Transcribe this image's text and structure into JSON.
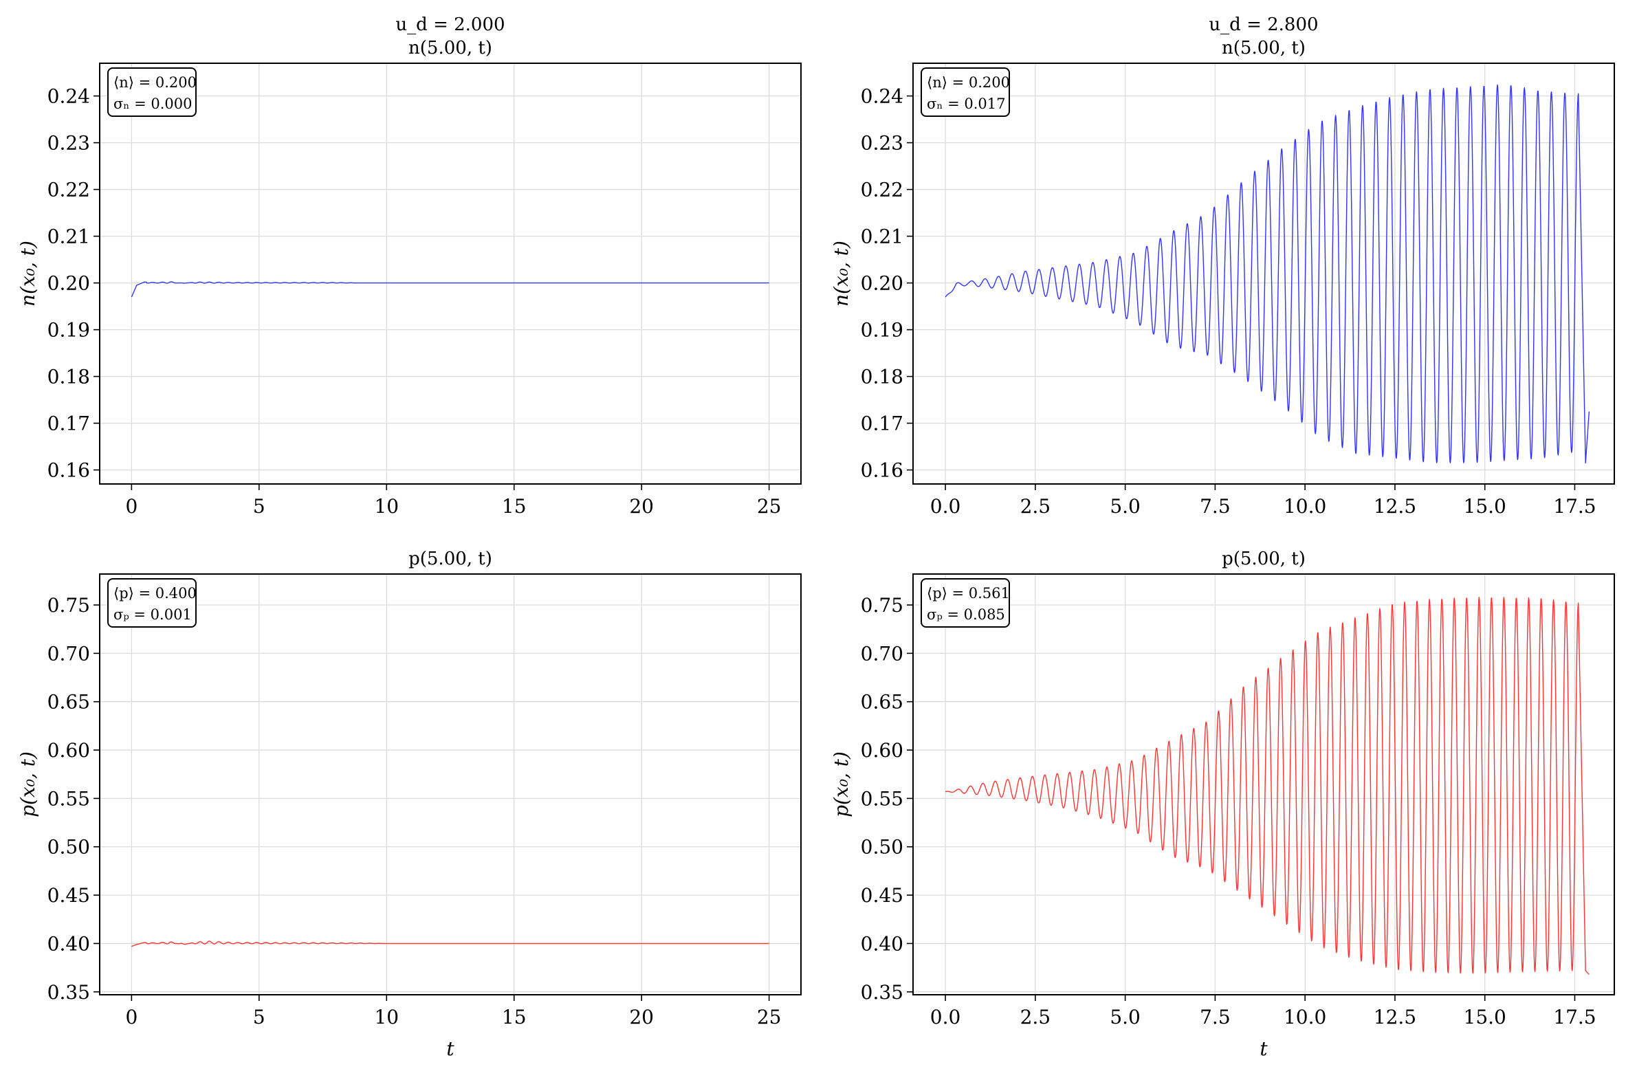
{
  "chart_data": [
    {
      "type": "line",
      "title": [
        "u_d = 2.000",
        "n(5.00, t)"
      ],
      "xlabel": "",
      "ylabel": "n(x₀, t)",
      "xlim": [
        -1.25,
        26.25
      ],
      "ylim": [
        0.157,
        0.247
      ],
      "xticks": [
        0,
        5,
        10,
        15,
        20,
        25
      ],
      "xtick_labels": [
        "0",
        "5",
        "10",
        "15",
        "20",
        "25"
      ],
      "yticks": [
        0.16,
        0.17,
        0.18,
        0.19,
        0.2,
        0.21,
        0.22,
        0.23,
        0.24
      ],
      "ytick_labels": [
        "0.16",
        "0.17",
        "0.18",
        "0.19",
        "0.20",
        "0.21",
        "0.22",
        "0.23",
        "0.24"
      ],
      "grid": true,
      "color": "#3333ff",
      "stats": [
        "⟨n⟩ = 0.200",
        "σₙ = 0.000"
      ],
      "series": [
        {
          "x": [
            0,
            0.2,
            0.5,
            1.0,
            1.5,
            2.0,
            2.5,
            3.0,
            4.0,
            5.0,
            6.0,
            7.0,
            8.0,
            9.0,
            10.0,
            12.0,
            14.0,
            16.0,
            18.0,
            20.0,
            22.0,
            24.0,
            25.0
          ],
          "y": [
            0.197,
            0.1995,
            0.2002,
            0.2001,
            0.2003,
            0.1999,
            0.2002,
            0.2002,
            0.2001,
            0.2001,
            0.2001,
            0.2001,
            0.2001,
            0.2,
            0.2,
            0.2,
            0.2,
            0.2,
            0.2,
            0.2,
            0.2,
            0.2,
            0.2
          ]
        }
      ]
    },
    {
      "type": "line",
      "title": [
        "u_d = 2.800",
        "n(5.00, t)"
      ],
      "xlabel": "",
      "ylabel": "n(x₀, t)",
      "xlim": [
        -0.9,
        18.6
      ],
      "ylim": [
        0.157,
        0.247
      ],
      "xticks": [
        0.0,
        2.5,
        5.0,
        7.5,
        10.0,
        12.5,
        15.0,
        17.5
      ],
      "xtick_labels": [
        "0.0",
        "2.5",
        "5.0",
        "7.5",
        "10.0",
        "12.5",
        "15.0",
        "17.5"
      ],
      "yticks": [
        0.16,
        0.17,
        0.18,
        0.19,
        0.2,
        0.21,
        0.22,
        0.23,
        0.24
      ],
      "ytick_labels": [
        "0.16",
        "0.17",
        "0.18",
        "0.19",
        "0.20",
        "0.21",
        "0.22",
        "0.23",
        "0.24"
      ],
      "grid": true,
      "color": "#3333ff",
      "stats": [
        "⟨n⟩ = 0.200",
        "σₙ = 0.017"
      ],
      "series": [
        {
          "x": [
            0.0,
            0.3,
            0.6,
            1.2,
            2.2,
            3.2,
            4.2,
            5.3,
            6.3,
            7.3,
            8.3,
            9.4,
            10.4,
            11.4,
            12.5,
            13.5,
            14.6,
            15.6,
            16.6,
            17.6,
            17.8,
            17.9
          ],
          "y": [
            0.197,
            0.2,
            0.2003,
            0.201,
            0.2025,
            0.2035,
            0.2045,
            0.2065,
            0.211,
            0.215,
            0.222,
            0.229,
            0.2345,
            0.2375,
            0.24,
            0.2415,
            0.242,
            0.2425,
            0.241,
            0.2405,
            0.1615,
            0.1725
          ],
          "envelope_low": [
            0.197,
            0.199,
            0.1995,
            0.199,
            0.198,
            0.1965,
            0.195,
            0.1915,
            0.1865,
            0.1845,
            0.1795,
            0.1735,
            0.167,
            0.1635,
            0.1625,
            0.1615,
            0.1615,
            0.162,
            0.1625,
            0.164,
            0.1615,
            0.1725
          ]
        }
      ]
    },
    {
      "type": "line",
      "title": [
        "p(5.00, t)"
      ],
      "xlabel": "t",
      "ylabel": "p(x₀, t)",
      "xlim": [
        -1.25,
        26.25
      ],
      "ylim": [
        0.347,
        0.782
      ],
      "xticks": [
        0,
        5,
        10,
        15,
        20,
        25
      ],
      "xtick_labels": [
        "0",
        "5",
        "10",
        "15",
        "20",
        "25"
      ],
      "yticks": [
        0.35,
        0.4,
        0.45,
        0.5,
        0.55,
        0.6,
        0.65,
        0.7,
        0.75
      ],
      "ytick_labels": [
        "0.35",
        "0.40",
        "0.45",
        "0.50",
        "0.55",
        "0.60",
        "0.65",
        "0.70",
        "0.75"
      ],
      "grid": true,
      "color": "#ff3333",
      "stats": [
        "⟨p⟩ = 0.400",
        "σₚ = 0.001"
      ],
      "series": [
        {
          "x": [
            0,
            0.2,
            0.5,
            1.0,
            1.5,
            2.0,
            2.5,
            3.0,
            4.0,
            5.0,
            6.0,
            7.0,
            8.0,
            9.0,
            10.0,
            12.0,
            14.0,
            16.0,
            18.0,
            20.0,
            22.0,
            24.0,
            25.0
          ],
          "y": [
            0.397,
            0.399,
            0.401,
            0.4005,
            0.402,
            0.3985,
            0.4015,
            0.4025,
            0.401,
            0.401,
            0.4008,
            0.4008,
            0.4006,
            0.4005,
            0.4,
            0.4,
            0.4,
            0.4,
            0.4,
            0.4,
            0.4,
            0.4,
            0.4
          ]
        }
      ]
    },
    {
      "type": "line",
      "title": [
        "p(5.00, t)"
      ],
      "xlabel": "t",
      "ylabel": "p(x₀, t)",
      "xlim": [
        -0.9,
        18.6
      ],
      "ylim": [
        0.347,
        0.782
      ],
      "xticks": [
        0.0,
        2.5,
        5.0,
        7.5,
        10.0,
        12.5,
        15.0,
        17.5
      ],
      "xtick_labels": [
        "0.0",
        "2.5",
        "5.0",
        "7.5",
        "10.0",
        "12.5",
        "15.0",
        "17.5"
      ],
      "yticks": [
        0.35,
        0.4,
        0.45,
        0.5,
        0.55,
        0.6,
        0.65,
        0.7,
        0.75
      ],
      "ytick_labels": [
        "0.35",
        "0.40",
        "0.45",
        "0.50",
        "0.55",
        "0.60",
        "0.65",
        "0.70",
        "0.75"
      ],
      "grid": true,
      "color": "#ff3333",
      "stats": [
        "⟨p⟩ = 0.561",
        "σₚ = 0.085"
      ],
      "series": [
        {
          "x": [
            0.0,
            0.3,
            0.6,
            1.2,
            2.2,
            3.2,
            4.2,
            5.3,
            6.3,
            7.3,
            8.3,
            9.4,
            10.4,
            11.4,
            12.5,
            13.5,
            14.6,
            15.6,
            16.6,
            17.6,
            17.8,
            17.9
          ],
          "y": [
            0.557,
            0.559,
            0.562,
            0.567,
            0.572,
            0.576,
            0.58,
            0.59,
            0.611,
            0.63,
            0.666,
            0.697,
            0.723,
            0.737,
            0.752,
            0.756,
            0.758,
            0.758,
            0.757,
            0.752,
            0.372,
            0.368
          ],
          "envelope_low": [
            0.557,
            0.556,
            0.555,
            0.553,
            0.548,
            0.541,
            0.531,
            0.515,
            0.49,
            0.476,
            0.45,
            0.422,
            0.397,
            0.383,
            0.373,
            0.37,
            0.369,
            0.37,
            0.371,
            0.372,
            0.372,
            0.368
          ]
        }
      ]
    }
  ]
}
